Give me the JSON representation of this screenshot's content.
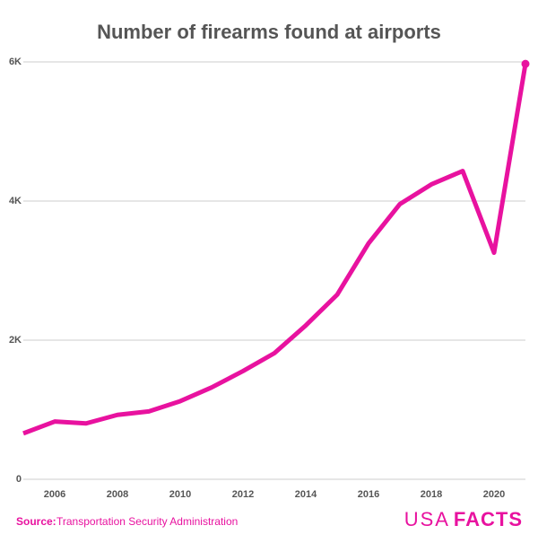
{
  "chart_data": {
    "type": "line",
    "title": "Number of firearms found at airports",
    "x": [
      2005,
      2006,
      2007,
      2008,
      2009,
      2010,
      2011,
      2012,
      2013,
      2014,
      2015,
      2016,
      2017,
      2018,
      2019,
      2020,
      2021
    ],
    "series": [
      {
        "color": "#e8129f",
        "values": [
          660,
          830,
          803,
          926,
          976,
          1123,
          1320,
          1556,
          1813,
          2212,
          2653,
          3391,
          3957,
          4239,
          4432,
          3257,
          5972
        ]
      }
    ],
    "xlim": [
      2005,
      2021
    ],
    "xticks": [
      2006,
      2008,
      2010,
      2012,
      2014,
      2016,
      2018,
      2020
    ],
    "ylim": [
      0,
      6000
    ],
    "yticks": [
      0,
      {
        "value": 2000,
        "label": "2K"
      },
      {
        "value": 4000,
        "label": "4K"
      },
      {
        "value": 6000,
        "label": "6K"
      }
    ],
    "grid": true,
    "source_label": "Source:",
    "source": "Transportation Security Administration",
    "logo": [
      "USA",
      "FACTS"
    ]
  }
}
